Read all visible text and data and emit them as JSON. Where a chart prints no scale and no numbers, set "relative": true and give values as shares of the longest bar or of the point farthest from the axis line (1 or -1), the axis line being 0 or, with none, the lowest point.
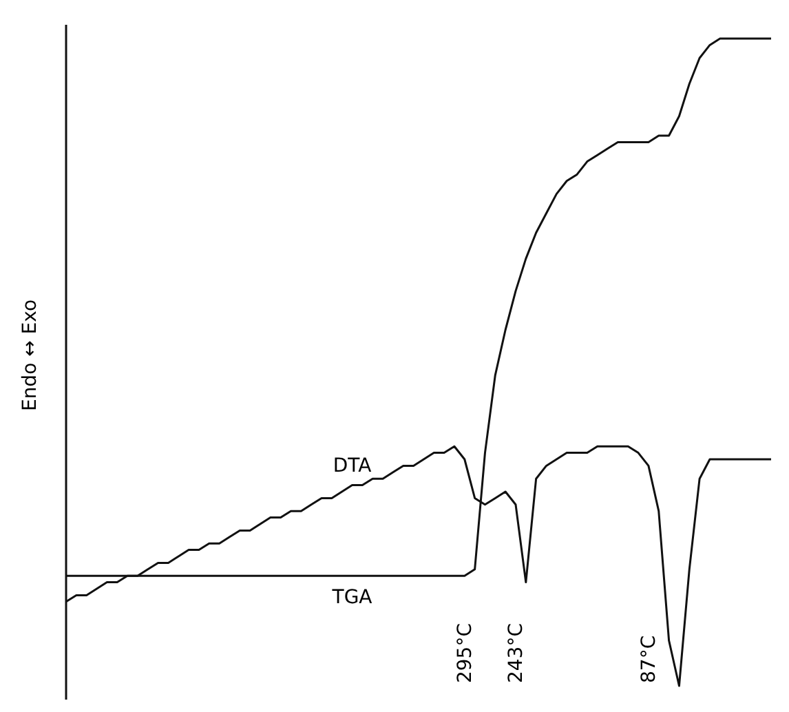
{
  "chart_data": {
    "type": "line",
    "relative": true,
    "ylabel": "Endo ↔ Exo",
    "tick_labels": false,
    "grid": false,
    "legend": false,
    "marker": "none",
    "line_style": "solid",
    "categories": [
      null,
      null,
      null,
      null,
      null,
      null,
      null,
      null,
      null,
      null,
      null,
      null,
      null,
      null,
      null,
      null,
      null,
      null,
      null,
      null,
      null,
      null,
      null,
      null,
      null,
      null,
      null,
      null,
      null,
      null,
      null,
      null,
      null,
      null,
      null,
      null,
      null,
      null,
      null,
      null,
      null,
      null,
      null,
      null,
      null,
      null,
      null,
      null,
      null,
      null,
      null,
      null,
      null,
      null,
      null,
      null,
      null,
      null,
      null,
      null,
      null,
      null,
      null,
      null,
      null,
      null,
      null,
      null,
      null,
      null
    ],
    "series": [
      {
        "name": "DTA",
        "color": "#111111",
        "values": [
          0.13,
          0.14,
          0.14,
          0.15,
          0.16,
          0.16,
          0.17,
          0.17,
          0.18,
          0.19,
          0.19,
          0.2,
          0.21,
          0.21,
          0.22,
          0.22,
          0.23,
          0.24,
          0.24,
          0.25,
          0.26,
          0.26,
          0.27,
          0.27,
          0.28,
          0.29,
          0.29,
          0.3,
          0.31,
          0.31,
          0.32,
          0.32,
          0.33,
          0.34,
          0.34,
          0.35,
          0.36,
          0.36,
          0.37,
          0.35,
          0.29,
          0.28,
          0.29,
          0.3,
          0.28,
          0.16,
          0.32,
          0.34,
          0.35,
          0.36,
          0.36,
          0.36,
          0.37,
          0.37,
          0.37,
          0.37,
          0.36,
          0.34,
          0.27,
          0.07,
          0.0,
          0.18,
          0.32,
          0.35,
          0.35,
          0.35,
          0.35,
          0.35,
          0.35,
          0.35
        ]
      },
      {
        "name": "TGA",
        "color": "#111111",
        "values": [
          0.17,
          0.17,
          0.17,
          0.17,
          0.17,
          0.17,
          0.17,
          0.17,
          0.17,
          0.17,
          0.17,
          0.17,
          0.17,
          0.17,
          0.17,
          0.17,
          0.17,
          0.17,
          0.17,
          0.17,
          0.17,
          0.17,
          0.17,
          0.17,
          0.17,
          0.17,
          0.17,
          0.17,
          0.17,
          0.17,
          0.17,
          0.17,
          0.17,
          0.17,
          0.17,
          0.17,
          0.17,
          0.17,
          0.17,
          0.17,
          0.18,
          0.36,
          0.48,
          0.55,
          0.61,
          0.66,
          0.7,
          0.73,
          0.76,
          0.78,
          0.79,
          0.81,
          0.82,
          0.83,
          0.84,
          0.84,
          0.84,
          0.84,
          0.85,
          0.85,
          0.88,
          0.93,
          0.97,
          0.99,
          1.0,
          1.0,
          1.0,
          1.0,
          1.0,
          1.0
        ]
      }
    ],
    "annotations": [
      "295°C",
      "243°C",
      "87°C"
    ]
  }
}
